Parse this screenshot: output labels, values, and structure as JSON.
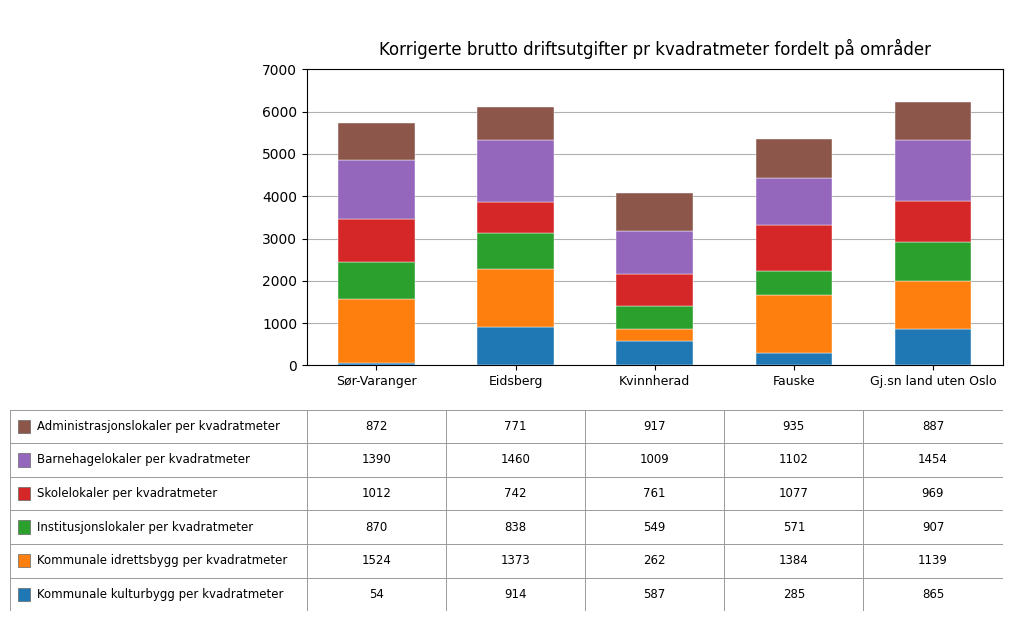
{
  "chart_data": {
    "type": "bar",
    "stacked": true,
    "grid": true,
    "title": "Korrigerte brutto driftsutgifter pr kvadratmeter fordelt på områder",
    "categories": [
      "Sør-Varanger",
      "Eidsberg",
      "Kvinnherad",
      "Fauske",
      "Gj.sn land uten Oslo"
    ],
    "series": [
      {
        "name": "Kommunale kulturbygg per kvadratmeter",
        "values": [
          54,
          914,
          587,
          285,
          865
        ]
      },
      {
        "name": "Kommunale idrettsbygg per kvadratmeter",
        "values": [
          1524,
          1373,
          262,
          1384,
          1139
        ]
      },
      {
        "name": "Institusjonslokaler per kvadratmeter",
        "values": [
          870,
          838,
          549,
          571,
          907
        ]
      },
      {
        "name": "Skolelokaler per kvadratmeter",
        "values": [
          1012,
          742,
          761,
          1077,
          969
        ]
      },
      {
        "name": "Barnehagelokaler per kvadratmeter",
        "values": [
          1390,
          1460,
          1009,
          1102,
          1454
        ]
      },
      {
        "name": "Administrasjonslokaler per kvadratmeter",
        "values": [
          872,
          771,
          917,
          935,
          887
        ]
      }
    ],
    "ylim": [
      0,
      7000
    ],
    "yticks": [
      0,
      1000,
      2000,
      3000,
      4000,
      5000,
      6000,
      7000
    ]
  }
}
